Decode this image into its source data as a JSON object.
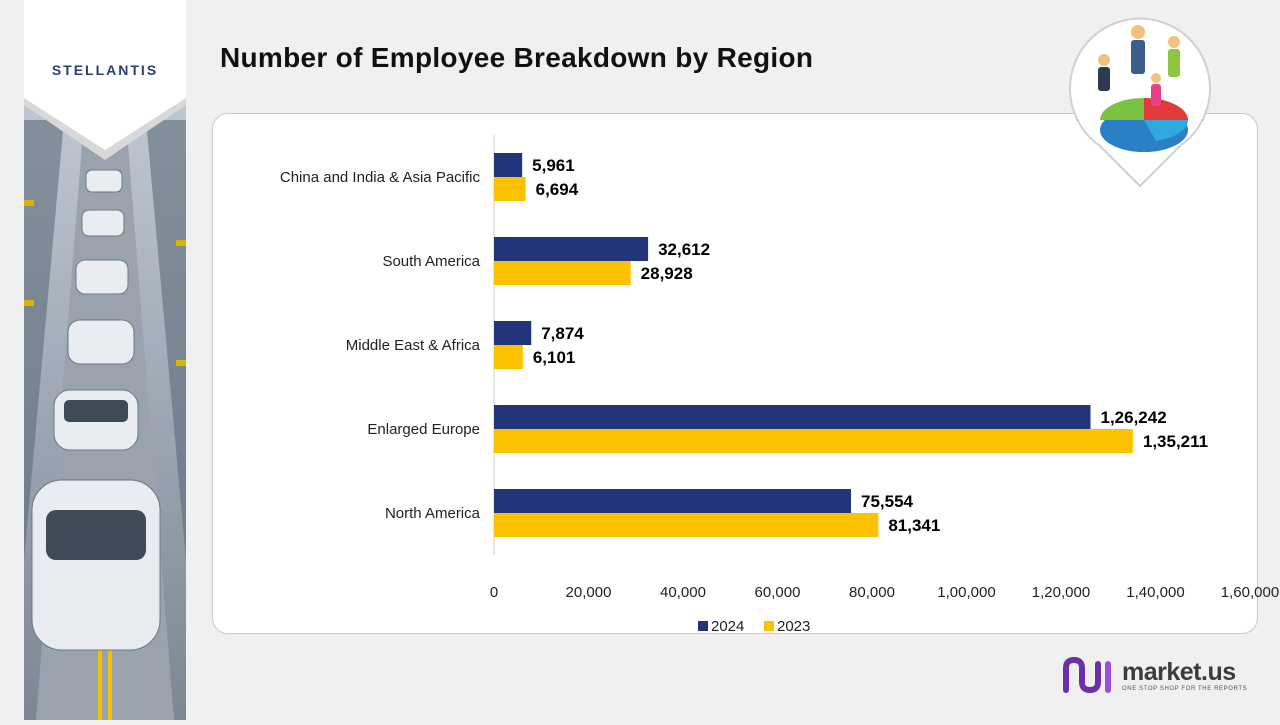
{
  "brand": {
    "company_logo": "STELLANTIS",
    "site_name": "market.us",
    "tagline": "ONE STOP SHOP FOR THE REPORTS"
  },
  "page": {
    "title": "Number of Employee Breakdown by Region"
  },
  "colors": {
    "series_2024": "#22357a",
    "series_2023": "#fcc200",
    "brand_purple": "#6b2fa8"
  },
  "chart_data": {
    "type": "bar",
    "orientation": "horizontal",
    "title": "",
    "categories": [
      "China and India & Asia Pacific",
      "South America",
      "Middle East & Africa",
      "Enlarged Europe",
      "North America"
    ],
    "series": [
      {
        "name": "2024",
        "values": [
          5961,
          32612,
          7874,
          126242,
          75554
        ],
        "labels": [
          "5,961",
          "32,612",
          "7,874",
          "1,26,242",
          "75,554"
        ]
      },
      {
        "name": "2023",
        "values": [
          6694,
          28928,
          6101,
          135211,
          81341
        ],
        "labels": [
          "6,694",
          "28,928",
          "6,101",
          "1,35,211",
          "81,341"
        ]
      }
    ],
    "xlim": [
      0,
      160000
    ],
    "ticks": [
      0,
      20000,
      40000,
      60000,
      80000,
      100000,
      120000,
      140000,
      160000
    ],
    "tick_labels": [
      "0",
      "20,000",
      "40,000",
      "60,000",
      "80,000",
      "1,00,000",
      "1,20,000",
      "1,40,000",
      "1,60,000"
    ],
    "xlabel": "",
    "ylabel": "",
    "grid": false,
    "legend": "bottom-center"
  }
}
